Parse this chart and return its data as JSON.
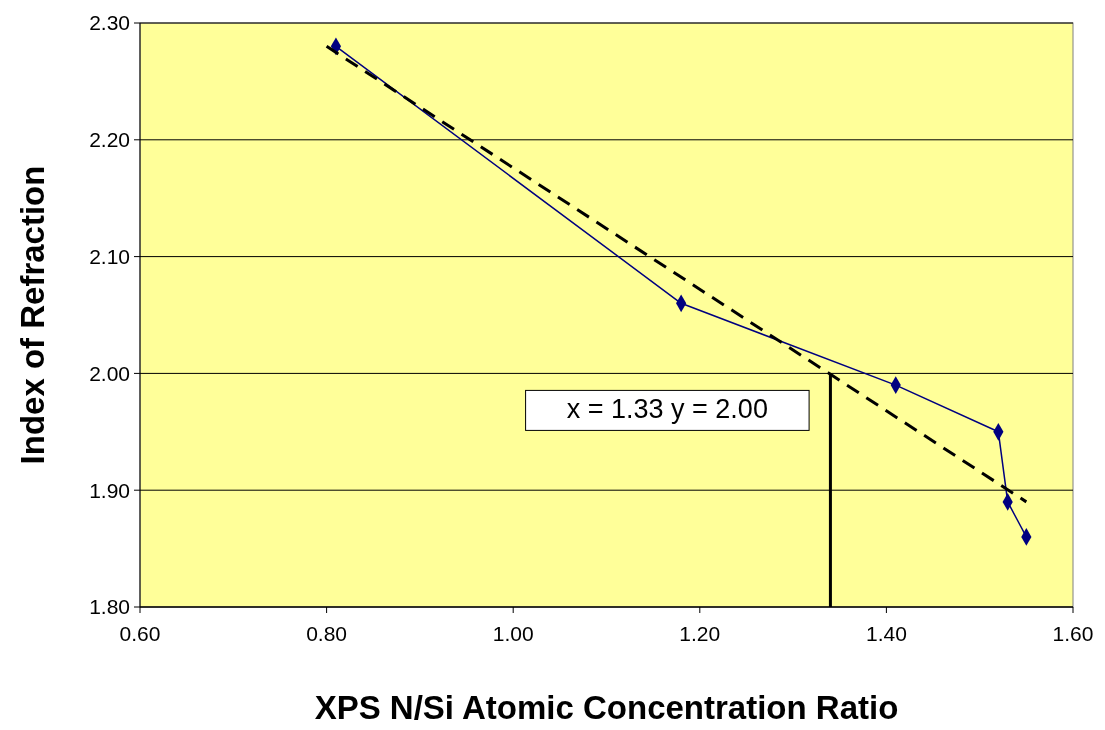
{
  "chart_data": {
    "type": "line",
    "xlabel": "XPS N/Si Atomic Concentration Ratio",
    "ylabel": "Index of Refraction",
    "xlim": [
      0.6,
      1.6
    ],
    "xticks": [
      {
        "value": 0.6,
        "label": "0.60"
      },
      {
        "value": 0.8,
        "label": "0.80"
      },
      {
        "value": 1.0,
        "label": "1.00"
      },
      {
        "value": 1.2,
        "label": "1.20"
      },
      {
        "value": 1.4,
        "label": "1.40"
      },
      {
        "value": 1.6,
        "label": "1.60"
      }
    ],
    "ylim": [
      1.8,
      2.3
    ],
    "yticks": [
      {
        "value": 1.8,
        "label": "1.80"
      },
      {
        "value": 1.9,
        "label": "1.90"
      },
      {
        "value": 2.0,
        "label": "2.00"
      },
      {
        "value": 2.1,
        "label": "2.10"
      },
      {
        "value": 2.2,
        "label": "2.20"
      },
      {
        "value": 2.3,
        "label": "2.30"
      }
    ],
    "grid": "y",
    "marker": "diamond",
    "series": [
      {
        "color": "#000080",
        "x": [
          0.81,
          1.18,
          1.41,
          1.52,
          1.53,
          1.55
        ],
        "values": [
          2.28,
          2.06,
          1.99,
          1.95,
          1.89,
          1.86
        ]
      },
      {
        "type": "line",
        "color": "#000000",
        "line_style": "dashed",
        "marker": "none",
        "x": [
          0.8,
          1.55
        ],
        "values": [
          2.28,
          1.89
        ]
      },
      {
        "type": "line",
        "color": "#000000",
        "marker": "none",
        "x": [
          1.34,
          1.34
        ],
        "values": [
          1.8,
          2.0
        ]
      }
    ],
    "annotations": [
      {
        "text": "x = 1.33 y = 2.00",
        "x": 1.33,
        "y": 2.0
      }
    ]
  }
}
